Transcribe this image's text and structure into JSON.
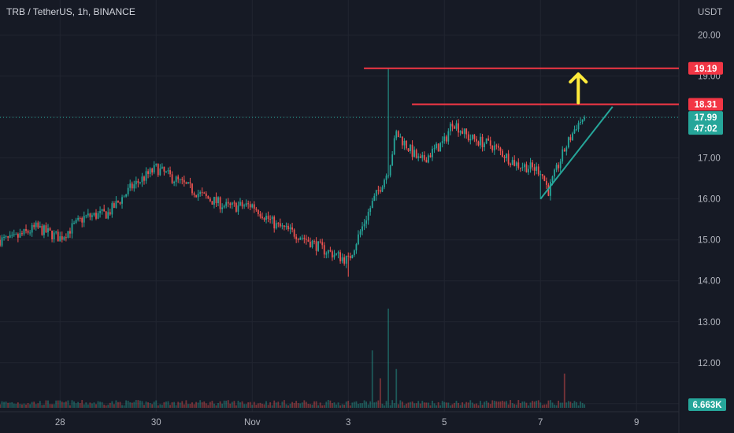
{
  "header": {
    "title": "TRB / TetherUS, 1h, BINANCE"
  },
  "chart_data": {
    "type": "candlestick",
    "title": "TRB / TetherUS, 1h, BINANCE",
    "y_axis": {
      "unit": "USDT",
      "range": [
        10.9,
        20.8
      ],
      "ticks": [
        11.0,
        12.0,
        13.0,
        14.0,
        15.0,
        16.0,
        17.0,
        18.0,
        19.0,
        20.0
      ],
      "tick_labels": [
        "11.00",
        "12.00",
        "13.00",
        "14.00",
        "15.00",
        "16.00",
        "17.00",
        "18.00",
        "19.00",
        "20.00"
      ]
    },
    "x_axis": {
      "range_days": [
        "Oct 27",
        "Nov 10"
      ],
      "tick_labels": [
        "28",
        "30",
        "Nov",
        "3",
        "5",
        "7",
        "9"
      ]
    },
    "price_path": [
      [
        "Oct 27 00:00",
        15.0
      ],
      [
        "Oct 27 12:00",
        15.3
      ],
      [
        "Oct 28 00:00",
        15.05
      ],
      [
        "Oct 28 12:00",
        15.55
      ],
      [
        "Oct 29 00:00",
        15.65
      ],
      [
        "Oct 29 12:00",
        16.3
      ],
      [
        "Oct 30 00:00",
        16.75
      ],
      [
        "Oct 30 12:00",
        16.4
      ],
      [
        "Oct 31 00:00",
        16.05
      ],
      [
        "Oct 31 12:00",
        15.8
      ],
      [
        "Nov 1 00:00",
        15.85
      ],
      [
        "Nov 1 12:00",
        15.35
      ],
      [
        "Nov 2 00:00",
        15.1
      ],
      [
        "Nov 2 12:00",
        14.75
      ],
      [
        "Nov 3 00:00",
        14.5
      ],
      [
        "Nov 3 12:00",
        15.9
      ],
      [
        "Nov 3 20:00",
        16.7
      ],
      [
        "Nov 4 00:00",
        17.6
      ],
      [
        "Nov 4 12:00",
        16.9
      ],
      [
        "Nov 5 00:00",
        17.4
      ],
      [
        "Nov 5 04:00",
        17.9
      ],
      [
        "Nov 5 12:00",
        17.5
      ],
      [
        "Nov 6 00:00",
        17.3
      ],
      [
        "Nov 6 12:00",
        16.85
      ],
      [
        "Nov 7 00:00",
        16.7
      ],
      [
        "Nov 7 04:00",
        16.2
      ],
      [
        "Nov 7 12:00",
        17.2
      ],
      [
        "Nov 7 18:00",
        17.8
      ],
      [
        "Nov 7 22:00",
        17.99
      ]
    ],
    "extremes": [
      [
        "Nov 3 20:00",
        19.19,
        "high"
      ],
      [
        "Nov 3 00:00",
        14.1,
        "low"
      ],
      [
        "Nov 7 00:00",
        16.0,
        "low"
      ]
    ],
    "volume": {
      "last_label": "6.663K",
      "spikes": [
        [
          "Nov 3 20:00",
          1.0
        ],
        [
          "Nov 3 12:00",
          0.55
        ],
        [
          "Nov 4 00:00",
          0.35
        ],
        [
          "Nov 7 12:00",
          0.3
        ],
        [
          "Nov 3 16:00",
          0.25
        ]
      ]
    },
    "last_price": {
      "value": 17.99,
      "label": "17.99",
      "countdown": "47:02",
      "color": "#26a69a"
    },
    "annotations": {
      "resistance_lines": [
        {
          "value": 19.19,
          "label": "19.19",
          "from": "Nov 3 20:00",
          "color": "#f23645"
        },
        {
          "value": 18.31,
          "label": "18.31",
          "from": "Nov 4 20:00",
          "color": "#f23645"
        }
      ],
      "trendline": {
        "from": [
          "Nov 7 00:00",
          16.0
        ],
        "to": [
          "Nov 8 12:00",
          18.25
        ],
        "color": "#26a69a"
      },
      "arrow": {
        "at": "Nov 8 00:00",
        "from": 18.35,
        "to": 19.05,
        "direction": "up",
        "color": "#ffeb3b"
      }
    },
    "colors": {
      "up": "#26a69a",
      "down": "#ef5350",
      "background": "#161a25",
      "grid": "#212530",
      "axis_text": "#b2b5be"
    },
    "grid": true
  }
}
